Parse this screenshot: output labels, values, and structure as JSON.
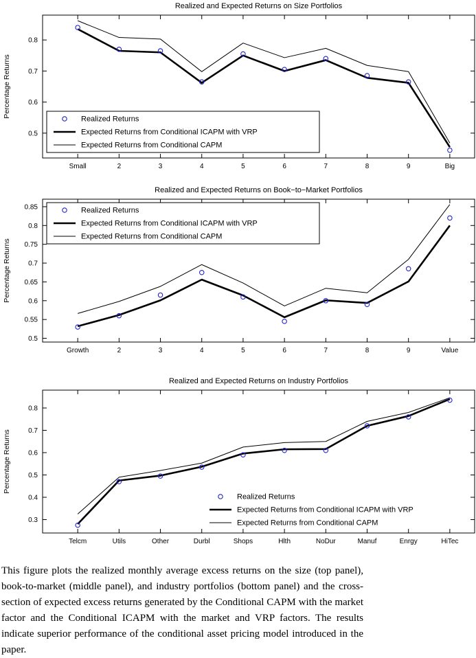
{
  "caption": "This figure plots the realized monthly average excess returns on the size (top panel), book-to-market (middle panel), and industry portfolios (bottom panel) and the cross-section of expected excess returns generated by the Conditional CAPM with the market factor and the Conditional ICAPM with the market and VRP factors. The results indicate superior performance of the conditional asset pricing model introduced in the paper.",
  "colors": {
    "realized_marker": "#2222cc",
    "line": "#000000"
  },
  "chart_data": [
    {
      "type": "line",
      "title": "Realized and Expected Returns on Size Portfolios",
      "xlabel": "",
      "ylabel": "Percentage Returns",
      "categories": [
        "Small",
        "2",
        "3",
        "4",
        "5",
        "6",
        "7",
        "8",
        "9",
        "Big"
      ],
      "yticks": [
        0.5,
        0.6,
        0.7,
        0.8
      ],
      "ylim": [
        0.42,
        0.88
      ],
      "grid": false,
      "legend_position": "bottom-left",
      "legend_box": true,
      "series": [
        {
          "name": "Realized Returns",
          "style": "circles",
          "color": "#2222cc",
          "values": [
            0.84,
            0.77,
            0.765,
            0.665,
            0.755,
            0.705,
            0.74,
            0.685,
            0.665,
            0.445
          ]
        },
        {
          "name": "Expected Returns from Conditional ICAPM with VRP",
          "style": "thick-line",
          "color": "#000000",
          "values": [
            0.835,
            0.765,
            0.76,
            0.662,
            0.75,
            0.7,
            0.735,
            0.678,
            0.662,
            0.455
          ]
        },
        {
          "name": "Expected Returns from Conditional CAPM",
          "style": "thin-line",
          "color": "#000000",
          "values": [
            0.862,
            0.808,
            0.803,
            0.698,
            0.79,
            0.743,
            0.773,
            0.718,
            0.698,
            0.468
          ]
        }
      ]
    },
    {
      "type": "line",
      "title": "Realized and Expected Returns on Book−to−Market Portfolios",
      "xlabel": "",
      "ylabel": "Percentage Returns",
      "categories": [
        "Growth",
        "2",
        "3",
        "4",
        "5",
        "6",
        "7",
        "8",
        "9",
        "Value"
      ],
      "yticks": [
        0.5,
        0.55,
        0.6,
        0.65,
        0.7,
        0.75,
        0.8,
        0.85
      ],
      "ylim": [
        0.49,
        0.87
      ],
      "grid": false,
      "legend_position": "top-left",
      "legend_box": true,
      "series": [
        {
          "name": "Realized Returns",
          "style": "circles",
          "color": "#2222cc",
          "values": [
            0.53,
            0.56,
            0.615,
            0.675,
            0.61,
            0.545,
            0.6,
            0.59,
            0.685,
            0.82
          ]
        },
        {
          "name": "Expected Returns from Conditional ICAPM with VRP",
          "style": "thick-line",
          "color": "#000000",
          "values": [
            0.532,
            0.562,
            0.601,
            0.656,
            0.614,
            0.556,
            0.601,
            0.594,
            0.651,
            0.8
          ]
        },
        {
          "name": "Expected Returns from Conditional CAPM",
          "style": "thin-line",
          "color": "#000000",
          "values": [
            0.566,
            0.598,
            0.638,
            0.696,
            0.647,
            0.586,
            0.633,
            0.621,
            0.71,
            0.856
          ]
        }
      ]
    },
    {
      "type": "line",
      "title": "Realized and Expected Returns on Industry Portfolios",
      "xlabel": "",
      "ylabel": "Percentage Returns",
      "categories": [
        "Telcm",
        "Utils",
        "Other",
        "Durbl",
        "Shops",
        "Hlth",
        "NoDur",
        "Manuf",
        "Enrgy",
        "HiTec"
      ],
      "yticks": [
        0.3,
        0.4,
        0.5,
        0.6,
        0.7,
        0.8
      ],
      "ylim": [
        0.24,
        0.88
      ],
      "grid": false,
      "legend_position": "bottom-right",
      "legend_box": false,
      "series": [
        {
          "name": "Realized Returns",
          "style": "circles",
          "color": "#2222cc",
          "values": [
            0.275,
            0.47,
            0.495,
            0.535,
            0.59,
            0.61,
            0.61,
            0.72,
            0.76,
            0.835
          ]
        },
        {
          "name": "Expected Returns from Conditional ICAPM with VRP",
          "style": "thick-line",
          "color": "#000000",
          "values": [
            0.28,
            0.475,
            0.497,
            0.537,
            0.596,
            0.615,
            0.616,
            0.72,
            0.764,
            0.84
          ]
        },
        {
          "name": "Expected Returns from Conditional CAPM",
          "style": "thin-line",
          "color": "#000000",
          "values": [
            0.325,
            0.49,
            0.52,
            0.553,
            0.625,
            0.645,
            0.65,
            0.74,
            0.78,
            0.846
          ]
        }
      ]
    }
  ]
}
